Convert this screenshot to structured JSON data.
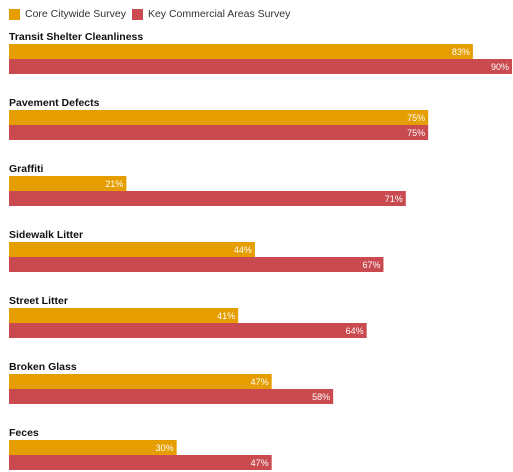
{
  "chart_data": {
    "type": "bar",
    "orientation": "horizontal",
    "title": "",
    "xlabel": "",
    "ylabel": "",
    "xlim": [
      0,
      90
    ],
    "value_suffix": "%",
    "legend": {
      "placement": "top-left",
      "items": [
        {
          "name": "Core Citywide Survey",
          "color": "#e69d00"
        },
        {
          "name": "Key Commercial Areas Survey",
          "color": "#c94a4f"
        }
      ]
    },
    "categories": [
      "Transit Shelter Cleanliness",
      "Pavement Defects",
      "Graffiti",
      "Sidewalk Litter",
      "Street Litter",
      "Broken Glass",
      "Feces"
    ],
    "series": [
      {
        "name": "Core Citywide Survey",
        "color": "#e69d00",
        "values": [
          83,
          75,
          21,
          44,
          41,
          47,
          30
        ]
      },
      {
        "name": "Key Commercial Areas Survey",
        "color": "#c94a4f",
        "values": [
          90,
          75,
          71,
          67,
          64,
          58,
          47
        ]
      }
    ],
    "grid": false
  }
}
